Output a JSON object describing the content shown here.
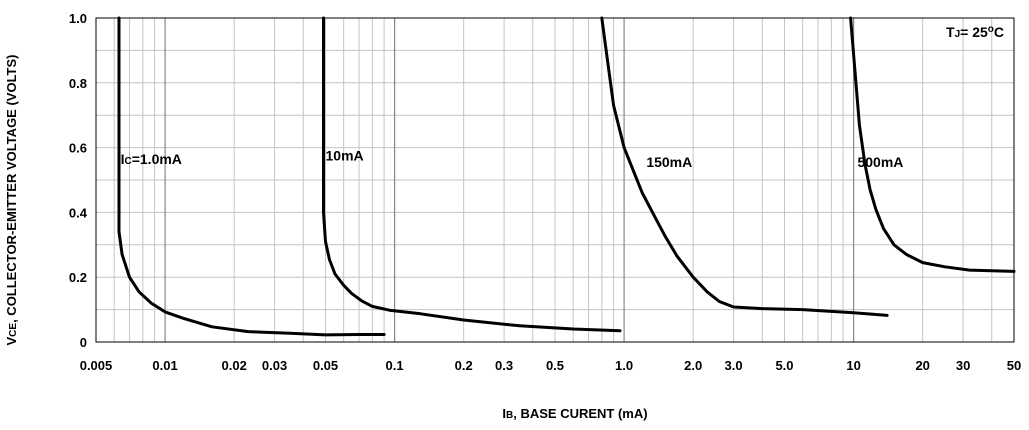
{
  "chart_data": {
    "type": "line",
    "x_scale": "log",
    "xlim": [
      0.005,
      50
    ],
    "ylim": [
      0,
      1.0
    ],
    "grid": true,
    "x_ticks": [
      {
        "value": 0.005,
        "label": "0.005"
      },
      {
        "value": 0.01,
        "label": "0.01"
      },
      {
        "value": 0.02,
        "label": "0.02"
      },
      {
        "value": 0.03,
        "label": "0.03"
      },
      {
        "value": 0.05,
        "label": "0.05"
      },
      {
        "value": 0.1,
        "label": "0.1"
      },
      {
        "value": 0.2,
        "label": "0.2"
      },
      {
        "value": 0.3,
        "label": "0.3"
      },
      {
        "value": 0.5,
        "label": "0.5"
      },
      {
        "value": 1.0,
        "label": "1.0"
      },
      {
        "value": 2.0,
        "label": "2.0"
      },
      {
        "value": 3.0,
        "label": "3.0"
      },
      {
        "value": 5.0,
        "label": "5.0"
      },
      {
        "value": 10,
        "label": "10"
      },
      {
        "value": 20,
        "label": "20"
      },
      {
        "value": 30,
        "label": "30"
      },
      {
        "value": 50,
        "label": "50"
      }
    ],
    "y_ticks": [
      {
        "value": 0,
        "label": "0"
      },
      {
        "value": 0.2,
        "label": "0.2"
      },
      {
        "value": 0.4,
        "label": "0.4"
      },
      {
        "value": 0.6,
        "label": "0.6"
      },
      {
        "value": 0.8,
        "label": "0.8"
      },
      {
        "value": 1.0,
        "label": "1.0"
      }
    ],
    "xlabel": {
      "main": "I",
      "sub": "B",
      "rest": ", BASE CURENT (mA)"
    },
    "ylabel": {
      "main": "V",
      "sub": "CE",
      "rest": ", COLLECTOR-EMITTER VOLTAGE (VOLTS)"
    },
    "annotation": {
      "main": "T",
      "sub": "J",
      "mid": "= 25",
      "sup": "o",
      "rest": "C"
    },
    "series": [
      {
        "label_prefix": "I",
        "label_sub": "C",
        "label_text": "=1.0mA",
        "label_at": [
          0.0064,
          0.55
        ],
        "points": [
          [
            0.0063,
            1.0
          ],
          [
            0.0063,
            0.34
          ],
          [
            0.0065,
            0.27
          ],
          [
            0.007,
            0.2
          ],
          [
            0.0077,
            0.155
          ],
          [
            0.0087,
            0.12
          ],
          [
            0.01,
            0.093
          ],
          [
            0.012,
            0.073
          ],
          [
            0.016,
            0.047
          ],
          [
            0.023,
            0.032
          ],
          [
            0.035,
            0.027
          ],
          [
            0.05,
            0.022
          ],
          [
            0.07,
            0.023
          ],
          [
            0.09,
            0.023
          ]
        ]
      },
      {
        "label_prefix": "",
        "label_sub": "",
        "label_text": "10mA",
        "label_at": [
          0.05,
          0.56
        ],
        "points": [
          [
            0.049,
            1.0
          ],
          [
            0.049,
            0.4
          ],
          [
            0.05,
            0.31
          ],
          [
            0.052,
            0.255
          ],
          [
            0.055,
            0.21
          ],
          [
            0.06,
            0.175
          ],
          [
            0.065,
            0.15
          ],
          [
            0.072,
            0.127
          ],
          [
            0.08,
            0.11
          ],
          [
            0.095,
            0.098
          ],
          [
            0.13,
            0.087
          ],
          [
            0.2,
            0.068
          ],
          [
            0.35,
            0.05
          ],
          [
            0.6,
            0.04
          ],
          [
            0.96,
            0.035
          ]
        ]
      },
      {
        "label_prefix": "",
        "label_sub": "",
        "label_text": "150mA",
        "label_at": [
          1.25,
          0.54
        ],
        "points": [
          [
            0.8,
            1.0
          ],
          [
            0.85,
            0.86
          ],
          [
            0.9,
            0.73
          ],
          [
            1.0,
            0.6
          ],
          [
            1.2,
            0.46
          ],
          [
            1.4,
            0.37
          ],
          [
            1.5,
            0.33
          ],
          [
            1.7,
            0.265
          ],
          [
            2.0,
            0.2
          ],
          [
            2.3,
            0.155
          ],
          [
            2.6,
            0.125
          ],
          [
            3.0,
            0.108
          ],
          [
            4.0,
            0.103
          ],
          [
            6.0,
            0.1
          ],
          [
            10.0,
            0.09
          ],
          [
            14.0,
            0.082
          ]
        ]
      },
      {
        "label_prefix": "",
        "label_sub": "",
        "label_text": "500mA",
        "label_at": [
          10.4,
          0.54
        ],
        "points": [
          [
            9.7,
            1.0
          ],
          [
            10.1,
            0.85
          ],
          [
            10.6,
            0.67
          ],
          [
            11.2,
            0.55
          ],
          [
            11.8,
            0.47
          ],
          [
            12.5,
            0.41
          ],
          [
            13.5,
            0.35
          ],
          [
            15.0,
            0.3
          ],
          [
            17.0,
            0.27
          ],
          [
            20.0,
            0.245
          ],
          [
            25.0,
            0.232
          ],
          [
            32.0,
            0.222
          ],
          [
            50.0,
            0.218
          ]
        ]
      }
    ]
  }
}
